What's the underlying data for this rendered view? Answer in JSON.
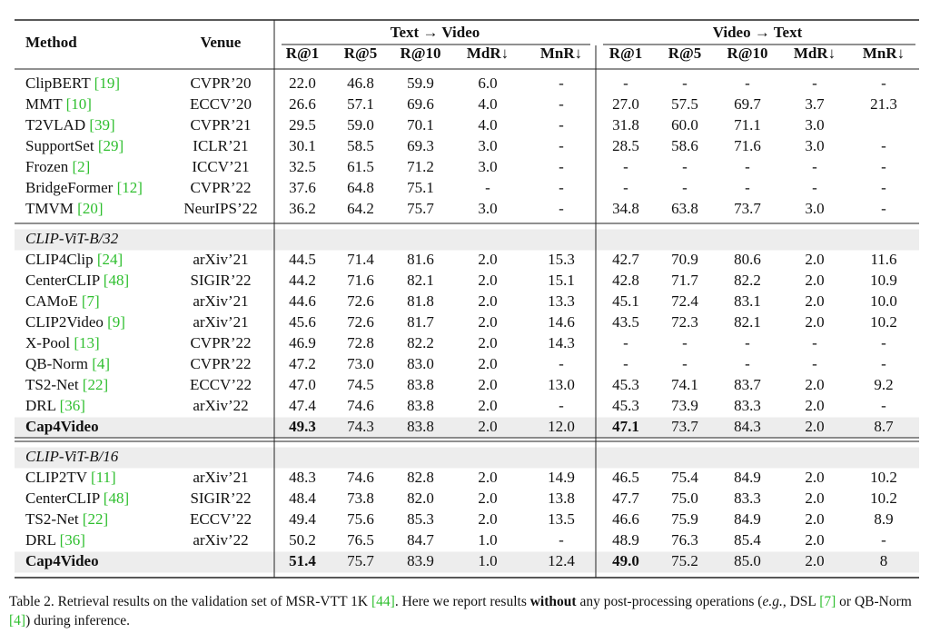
{
  "table": {
    "header": {
      "method": "Method",
      "venue": "Venue",
      "groups": [
        "Text → Video",
        "Video → Text"
      ],
      "metrics": [
        "R@1",
        "R@5",
        "R@10",
        "MdR↓",
        "MnR↓",
        "R@1",
        "R@5",
        "R@10",
        "MdR↓",
        "MnR↓"
      ]
    },
    "ref_color": "#2fbf2f",
    "bold_cols": [
      0,
      5
    ],
    "sections": [
      {
        "rows": [
          {
            "method": "ClipBERT",
            "ref": "[19]",
            "venue": "CVPR’20",
            "values": [
              "22.0",
              "46.8",
              "59.9",
              "6.0",
              "-",
              "-",
              "-",
              "-",
              "-",
              "-"
            ]
          },
          {
            "method": "MMT",
            "ref": "[10]",
            "venue": "ECCV’20",
            "values": [
              "26.6",
              "57.1",
              "69.6",
              "4.0",
              "-",
              "27.0",
              "57.5",
              "69.7",
              "3.7",
              "21.3"
            ]
          },
          {
            "method": "T2VLAD",
            "ref": "[39]",
            "venue": "CVPR’21",
            "values": [
              "29.5",
              "59.0",
              "70.1",
              "4.0",
              "-",
              "31.8",
              "60.0",
              "71.1",
              "3.0",
              null
            ]
          },
          {
            "method": "SupportSet",
            "ref": "[29]",
            "venue": "ICLR’21",
            "values": [
              "30.1",
              "58.5",
              "69.3",
              "3.0",
              "-",
              "28.5",
              "58.6",
              "71.6",
              "3.0",
              "-"
            ]
          },
          {
            "method": "Frozen",
            "ref": "[2]",
            "venue": "ICCV’21",
            "values": [
              "32.5",
              "61.5",
              "71.2",
              "3.0",
              "-",
              "-",
              "-",
              "-",
              "-",
              "-"
            ]
          },
          {
            "method": "BridgeFormer",
            "ref": "[12]",
            "venue": "CVPR’22",
            "values": [
              "37.6",
              "64.8",
              "75.1",
              "-",
              "-",
              "-",
              "-",
              "-",
              "-",
              "-"
            ]
          },
          {
            "method": "TMVM",
            "ref": "[20]",
            "venue": "NeurIPS’22",
            "values": [
              "36.2",
              "64.2",
              "75.7",
              "3.0",
              "-",
              "34.8",
              "63.8",
              "73.7",
              "3.0",
              "-"
            ]
          }
        ]
      },
      {
        "label": "CLIP-ViT-B/32",
        "rows": [
          {
            "method": "CLIP4Clip",
            "ref": "[24]",
            "venue": "arXiv’21",
            "values": [
              "44.5",
              "71.4",
              "81.6",
              "2.0",
              "15.3",
              "42.7",
              "70.9",
              "80.6",
              "2.0",
              "11.6"
            ]
          },
          {
            "method": "CenterCLIP",
            "ref": "[48]",
            "venue": "SIGIR’22",
            "values": [
              "44.2",
              "71.6",
              "82.1",
              "2.0",
              "15.1",
              "42.8",
              "71.7",
              "82.2",
              "2.0",
              "10.9"
            ]
          },
          {
            "method": "CAMoE",
            "ref": "[7]",
            "venue": "arXiv’21",
            "values": [
              "44.6",
              "72.6",
              "81.8",
              "2.0",
              "13.3",
              "45.1",
              "72.4",
              "83.1",
              "2.0",
              "10.0"
            ]
          },
          {
            "method": "CLIP2Video",
            "ref": "[9]",
            "venue": "arXiv’21",
            "values": [
              "45.6",
              "72.6",
              "81.7",
              "2.0",
              "14.6",
              "43.5",
              "72.3",
              "82.1",
              "2.0",
              "10.2"
            ]
          },
          {
            "method": "X-Pool",
            "ref": "[13]",
            "venue": "CVPR’22",
            "values": [
              "46.9",
              "72.8",
              "82.2",
              "2.0",
              "14.3",
              "-",
              "-",
              "-",
              "-",
              "-"
            ]
          },
          {
            "method": "QB-Norm",
            "ref": "[4]",
            "venue": "CVPR’22",
            "values": [
              "47.2",
              "73.0",
              "83.0",
              "2.0",
              "-",
              "-",
              "-",
              "-",
              "-",
              "-"
            ]
          },
          {
            "method": "TS2-Net",
            "ref": "[22]",
            "venue": "ECCV’22",
            "values": [
              "47.0",
              "74.5",
              "83.8",
              "2.0",
              "13.0",
              "45.3",
              "74.1",
              "83.7",
              "2.0",
              "9.2"
            ]
          },
          {
            "method": "DRL",
            "ref": "[36]",
            "venue": "arXiv’22",
            "values": [
              "47.4",
              "74.6",
              "83.8",
              "2.0",
              "-",
              "45.3",
              "73.9",
              "83.3",
              "2.0",
              "-"
            ]
          },
          {
            "method": "Cap4Video",
            "highlight": true,
            "values": [
              "49.3",
              "74.3",
              "83.8",
              "2.0",
              "12.0",
              "47.1",
              "73.7",
              "84.3",
              "2.0",
              "8.7"
            ]
          }
        ]
      },
      {
        "label": "CLIP-ViT-B/16",
        "rows": [
          {
            "method": "CLIP2TV",
            "ref": "[11]",
            "venue": "arXiv’21",
            "values": [
              "48.3",
              "74.6",
              "82.8",
              "2.0",
              "14.9",
              "46.5",
              "75.4",
              "84.9",
              "2.0",
              "10.2"
            ]
          },
          {
            "method": "CenterCLIP",
            "ref": "[48]",
            "venue": "SIGIR’22",
            "values": [
              "48.4",
              "73.8",
              "82.0",
              "2.0",
              "13.8",
              "47.7",
              "75.0",
              "83.3",
              "2.0",
              "10.2"
            ]
          },
          {
            "method": "TS2-Net",
            "ref": "[22]",
            "venue": "ECCV’22",
            "values": [
              "49.4",
              "75.6",
              "85.3",
              "2.0",
              "13.5",
              "46.6",
              "75.9",
              "84.9",
              "2.0",
              "8.9"
            ]
          },
          {
            "method": "DRL",
            "ref": "[36]",
            "venue": "arXiv’22",
            "values": [
              "50.2",
              "76.5",
              "84.7",
              "1.0",
              "-",
              "48.9",
              "76.3",
              "85.4",
              "2.0",
              "-"
            ]
          },
          {
            "method": "Cap4Video",
            "highlight": true,
            "values": [
              "51.4",
              "75.7",
              "83.9",
              "1.0",
              "12.4",
              "49.0",
              "75.2",
              "85.0",
              "2.0",
              "8"
            ]
          }
        ]
      }
    ]
  },
  "caption": [
    {
      "text": "Table 2. Retrieval results on the validation set of MSR-VTT 1K "
    },
    {
      "text": "[44]",
      "style": "ref"
    },
    {
      "text": ". Here we report results "
    },
    {
      "text": "without",
      "style": "bold"
    },
    {
      "text": " any post-processing operations ("
    },
    {
      "text": "e.g.",
      "style": "italic"
    },
    {
      "text": ", DSL "
    },
    {
      "text": "[7]",
      "style": "ref"
    },
    {
      "text": " or QB-Norm "
    },
    {
      "text": "[4]",
      "style": "ref"
    },
    {
      "text": ") during inference."
    }
  ]
}
